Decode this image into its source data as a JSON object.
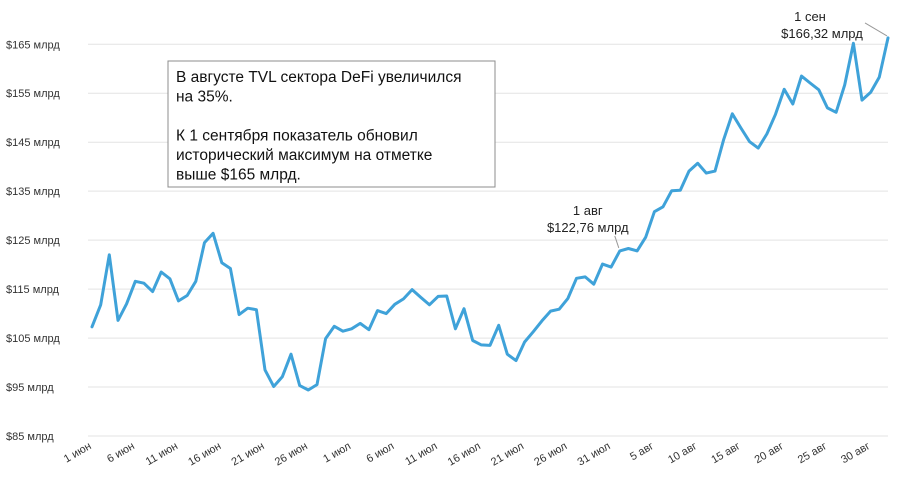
{
  "chart_data": {
    "type": "line",
    "title": "",
    "xlabel": "",
    "ylabel": "",
    "ylim": [
      85,
      172
    ],
    "yticks": [
      85,
      95,
      105,
      115,
      125,
      135,
      145,
      155,
      165
    ],
    "ytick_labels": [
      "$85 млрд",
      "$95 млрд",
      "$105 млрд",
      "$115 млрд",
      "$125 млрд",
      "$135 млрд",
      "$145 млрд",
      "$155 млрд",
      "$165 млрд"
    ],
    "xtick_labels": [
      "1 июн",
      "6 июн",
      "11 июн",
      "16 июн",
      "21 июн",
      "26 июн",
      "1 июл",
      "6 июл",
      "11 июл",
      "16 июл",
      "21 июл",
      "26 июл",
      "31 июл",
      "5 авг",
      "10 авг",
      "15 авг",
      "20 авг",
      "25 авг",
      "30 авг"
    ],
    "xtick_positions": [
      0,
      5,
      10,
      15,
      20,
      25,
      30,
      35,
      40,
      45,
      50,
      55,
      60,
      65,
      70,
      75,
      80,
      85,
      90
    ],
    "grid": "horizontal",
    "color": "#3fa2d9",
    "series": [
      {
        "values": [
          107.3,
          111.8,
          122.0,
          108.6,
          112.0,
          116.6,
          116.2,
          114.5,
          118.5,
          117.1,
          112.6,
          113.7,
          116.6,
          124.5,
          126.4,
          120.4,
          119.2,
          109.8,
          111.1,
          110.8,
          98.5,
          95.1,
          97.1,
          101.7,
          95.3,
          94.4,
          95.5,
          104.9,
          107.4,
          106.4,
          106.9,
          108.0,
          106.7,
          110.6,
          110.0,
          111.9,
          113.0,
          114.9,
          113.3,
          111.8,
          113.5,
          113.6,
          106.9,
          111.0,
          104.5,
          103.6,
          103.5,
          107.6,
          101.7,
          100.4,
          104.2,
          106.3,
          108.5,
          110.5,
          110.9,
          113.1,
          117.2,
          117.5,
          116.0,
          120.1,
          119.5,
          122.8,
          123.3,
          122.8,
          125.6,
          130.8,
          131.8,
          135.1,
          135.2,
          139.1,
          140.7,
          138.7,
          139.1,
          145.5,
          150.8,
          147.9,
          145.1,
          143.8,
          146.7,
          150.7,
          155.8,
          152.8,
          158.5,
          157.1,
          155.7,
          152.0,
          151.1,
          156.7,
          165.2,
          153.6,
          155.2,
          158.3,
          166.3
        ]
      }
    ],
    "annotations": [
      {
        "index": 61,
        "date": "1 авг",
        "value": "$122,76 млрд"
      },
      {
        "index": 92,
        "date": "1 сен",
        "value": "$166,32 млрд"
      }
    ],
    "callout": {
      "lines": [
        "В августе TVL сектора DeFi увеличился",
        "на 35%.",
        "",
        "К 1 сентября показатель обновил",
        "исторический максимум на отметке",
        "выше $165 млрд."
      ]
    }
  }
}
